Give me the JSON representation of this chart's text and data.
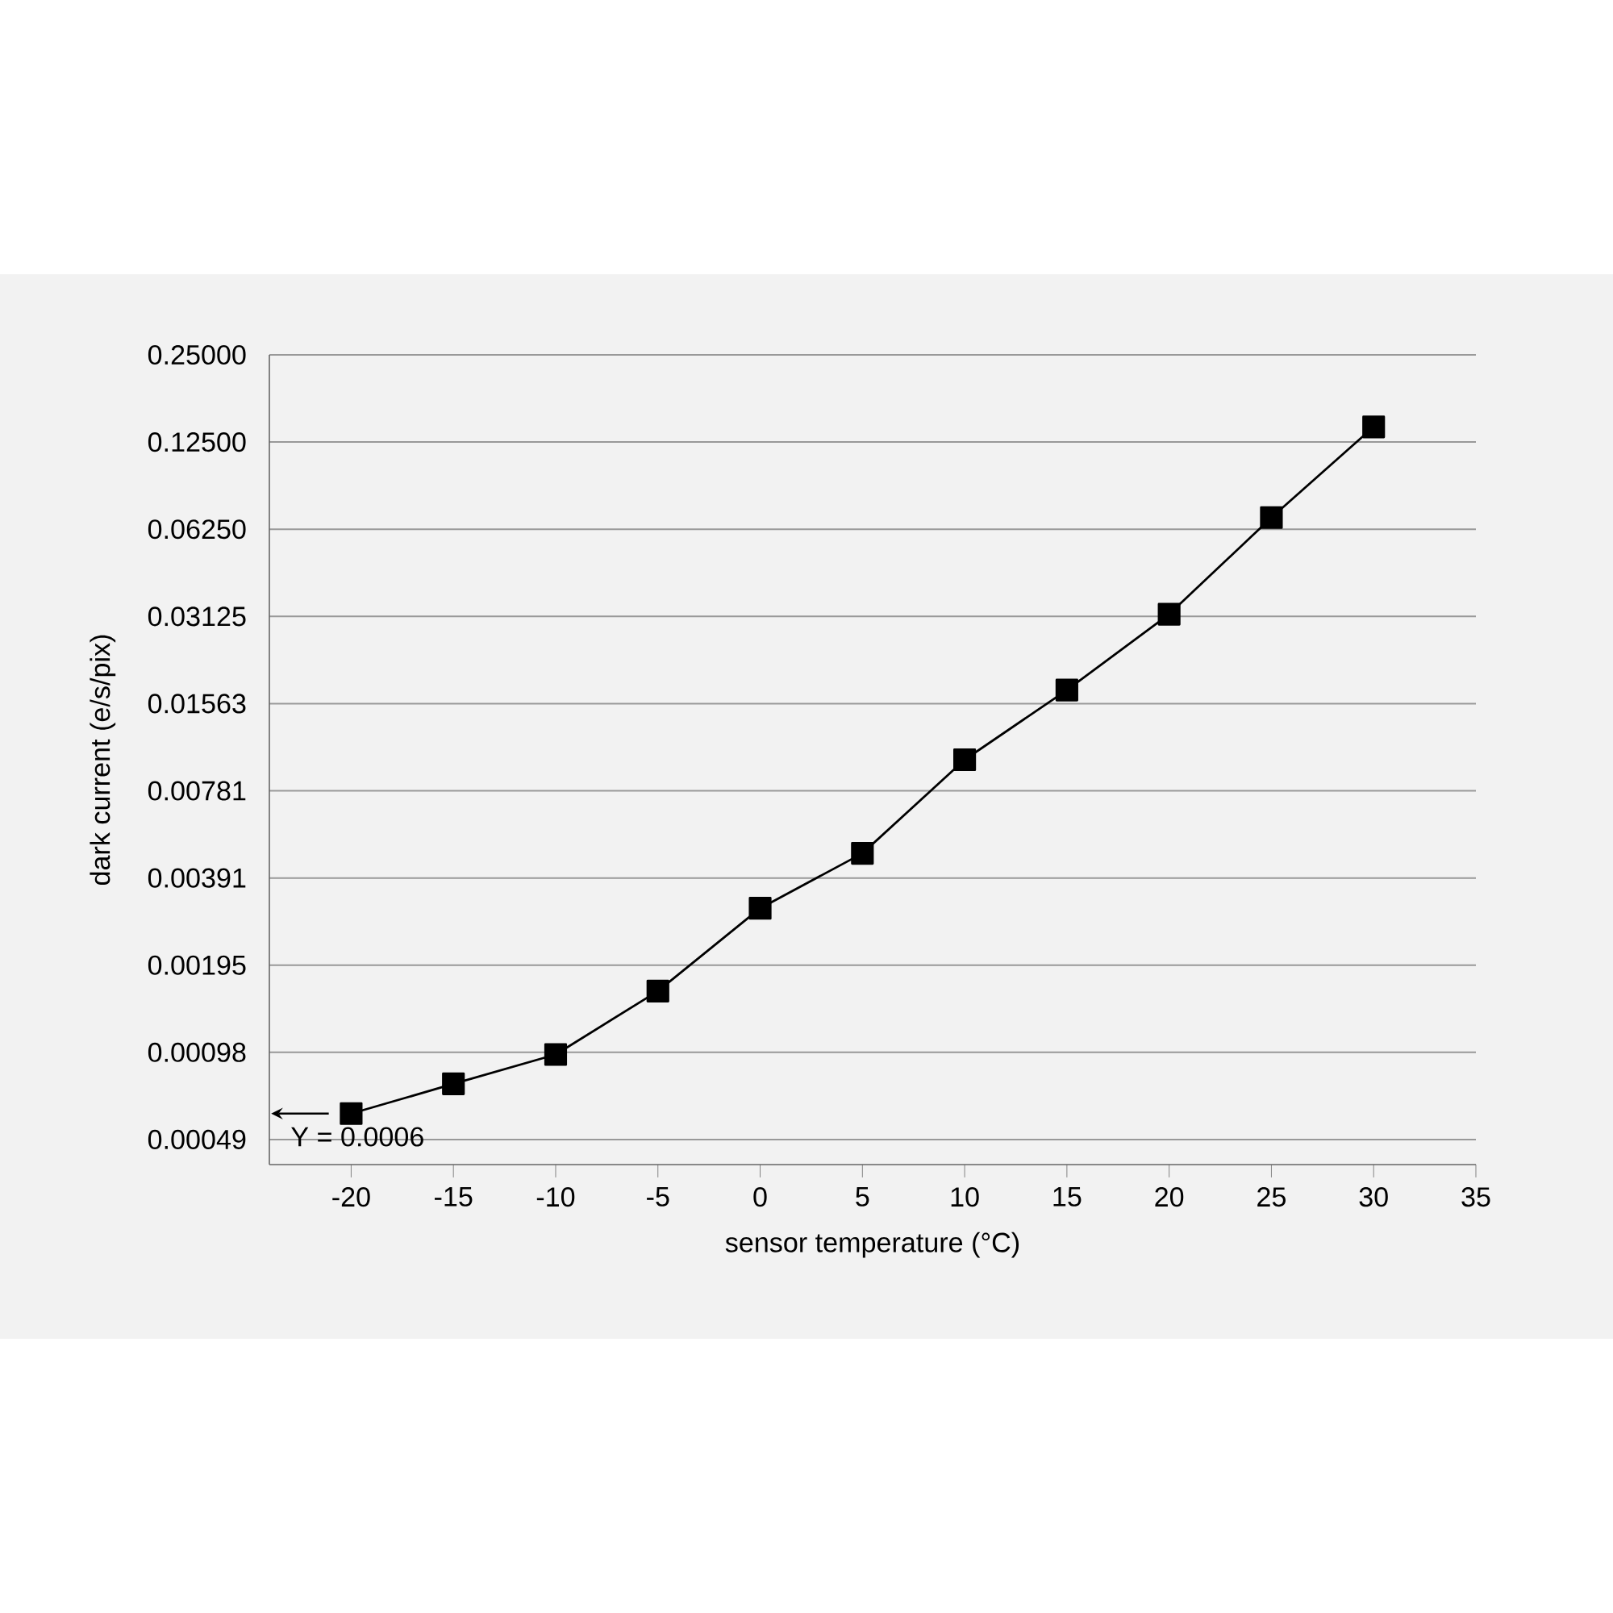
{
  "chart_data": {
    "type": "line",
    "xlabel": "sensor temperature (°C)",
    "ylabel": "dark current (e/s/pix)",
    "x": [
      -20,
      -15,
      -10,
      -5,
      0,
      5,
      10,
      15,
      20,
      25,
      30
    ],
    "values": [
      0.0006,
      0.00076,
      0.00096,
      0.00159,
      0.00307,
      0.00475,
      0.01,
      0.0174,
      0.0318,
      0.0686,
      0.141
    ],
    "color": "#000000",
    "marker": "square",
    "line_style": "solid",
    "log": "y",
    "grid": "y",
    "xlim": [
      -24,
      35
    ],
    "xticks": [
      -20,
      -15,
      -10,
      -5,
      0,
      5,
      10,
      15,
      20,
      25,
      30,
      35
    ],
    "ylim": [
      0.0004,
      0.25
    ],
    "yticks": [
      {
        "value": 0.00048828125,
        "label": "0.00049"
      },
      {
        "value": 0.0009765625,
        "label": "0.00098"
      },
      {
        "value": 0.001953125,
        "label": "0.00195"
      },
      {
        "value": 0.00390625,
        "label": "0.00391"
      },
      {
        "value": 0.0078125,
        "label": "0.00781"
      },
      {
        "value": 0.015625,
        "label": "0.01563"
      },
      {
        "value": 0.03125,
        "label": "0.03125"
      },
      {
        "value": 0.0625,
        "label": "0.06250"
      },
      {
        "value": 0.125,
        "label": "0.12500"
      },
      {
        "value": 0.25,
        "label": "0.25000"
      }
    ],
    "annotations": [
      {
        "text": "Y = 0.0006",
        "x": -20,
        "y": 0.0006
      }
    ]
  }
}
